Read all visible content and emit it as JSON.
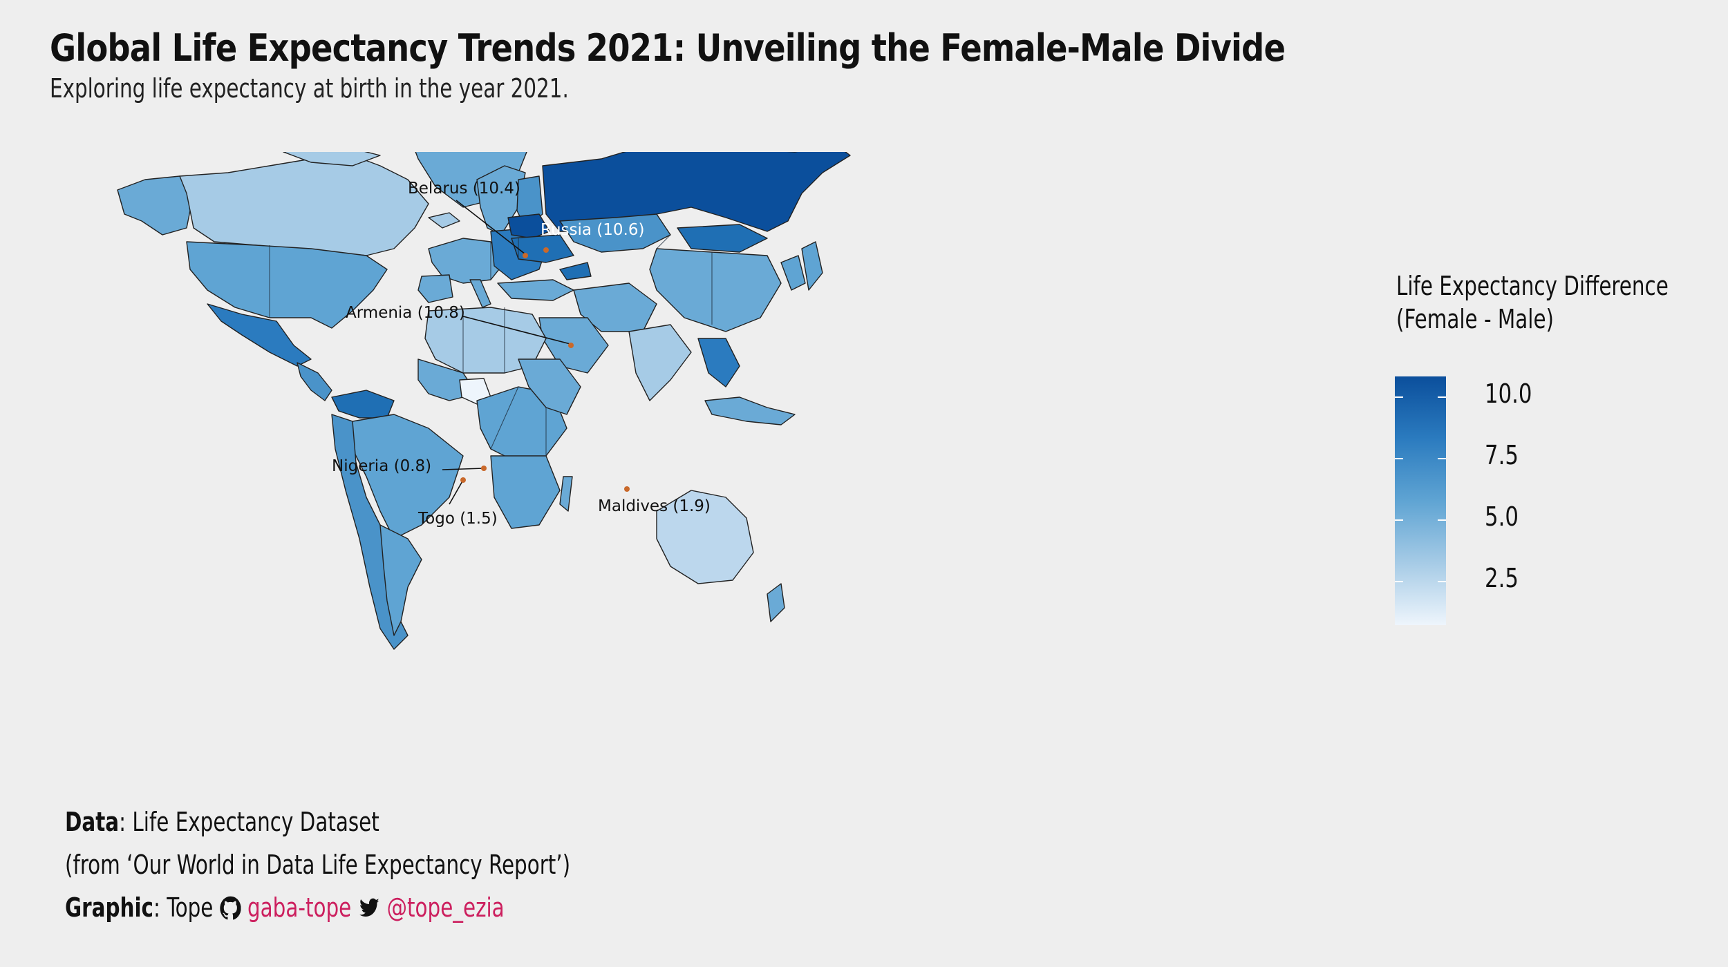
{
  "title": "Global Life Expectancy Trends 2021: Unveiling the Female-Male Divide",
  "subtitle": "Exploring life expectancy at birth in the year 2021.",
  "legend": {
    "title_line1": "Life Expectancy Difference",
    "title_line2": "(Female - Male)",
    "ticks": [
      "10.0",
      "7.5",
      "5.0",
      "2.5"
    ],
    "scale_colors": [
      "#0b4f9c",
      "#2b7bbf",
      "#5fa4d3",
      "#a6cbe6",
      "#eef5fc"
    ]
  },
  "annotations": [
    {
      "label": "Belarus (10.4)",
      "country": "Belarus",
      "value": 10.4
    },
    {
      "label": "Russia (10.6)",
      "country": "Russia",
      "value": 10.6
    },
    {
      "label": "Armenia (10.8)",
      "country": "Armenia",
      "value": 10.8
    },
    {
      "label": "Nigeria (0.8)",
      "country": "Nigeria",
      "value": 0.8
    },
    {
      "label": "Togo (1.5)",
      "country": "Togo",
      "value": 1.5
    },
    {
      "label": "Maldives (1.9)",
      "country": "Maldives",
      "value": 1.9
    }
  ],
  "footer": {
    "data_label": "Data",
    "data_text": ": Life Expectancy Dataset",
    "source_text": "(from ‘Our World in Data Life Expectancy Report’)",
    "graphic_label": "Graphic",
    "graphic_text": ": Tope",
    "github_icon": "github-icon",
    "github_handle": "gaba-tope",
    "twitter_icon": "twitter-icon",
    "twitter_handle": "@tope_ezia"
  },
  "colors": {
    "background": "#eeeeee",
    "accent_link": "#cc1f5e",
    "dot": "#c9692b"
  }
}
